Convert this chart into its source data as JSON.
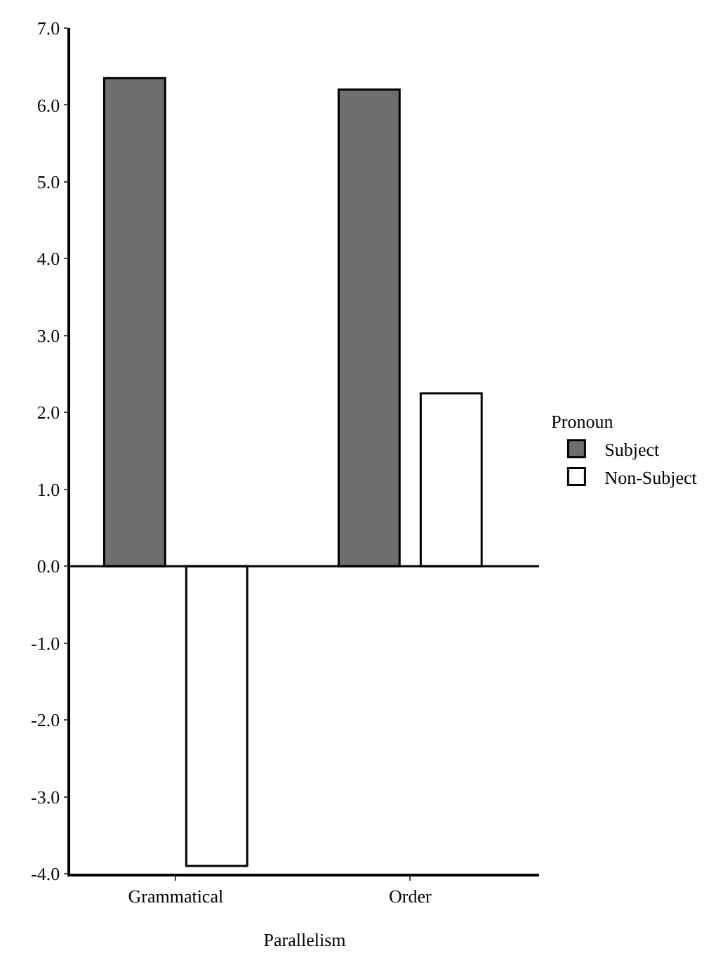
{
  "chart_data": {
    "type": "bar",
    "xlabel": "Parallelism",
    "legend_title": "Pronoun",
    "categories": [
      "Grammatical",
      "Order"
    ],
    "series": [
      {
        "name": "Subject",
        "color": "#6e6e6e",
        "values": [
          6.35,
          6.2
        ]
      },
      {
        "name": "Non-Subject",
        "color": "#ffffff",
        "values": [
          -3.9,
          2.25
        ]
      }
    ],
    "ylim": [
      -4,
      7
    ],
    "yticks": [
      {
        "value": -4,
        "label": "-4.0"
      },
      {
        "value": -3,
        "label": "-3.0"
      },
      {
        "value": -2,
        "label": "-2.0"
      },
      {
        "value": -1,
        "label": "-1.0"
      },
      {
        "value": 0,
        "label": "0.0"
      },
      {
        "value": 1,
        "label": "1.0"
      },
      {
        "value": 2,
        "label": "2.0"
      },
      {
        "value": 3,
        "label": "3.0"
      },
      {
        "value": 4,
        "label": "4.0"
      },
      {
        "value": 5,
        "label": "5.0"
      },
      {
        "value": 6,
        "label": "6.0"
      },
      {
        "value": 7,
        "label": "7.0"
      }
    ],
    "ref_lines": [
      {
        "axis": "y",
        "value": 0,
        "color": "#000000",
        "line_style": "solid"
      }
    ],
    "legend": "right"
  }
}
